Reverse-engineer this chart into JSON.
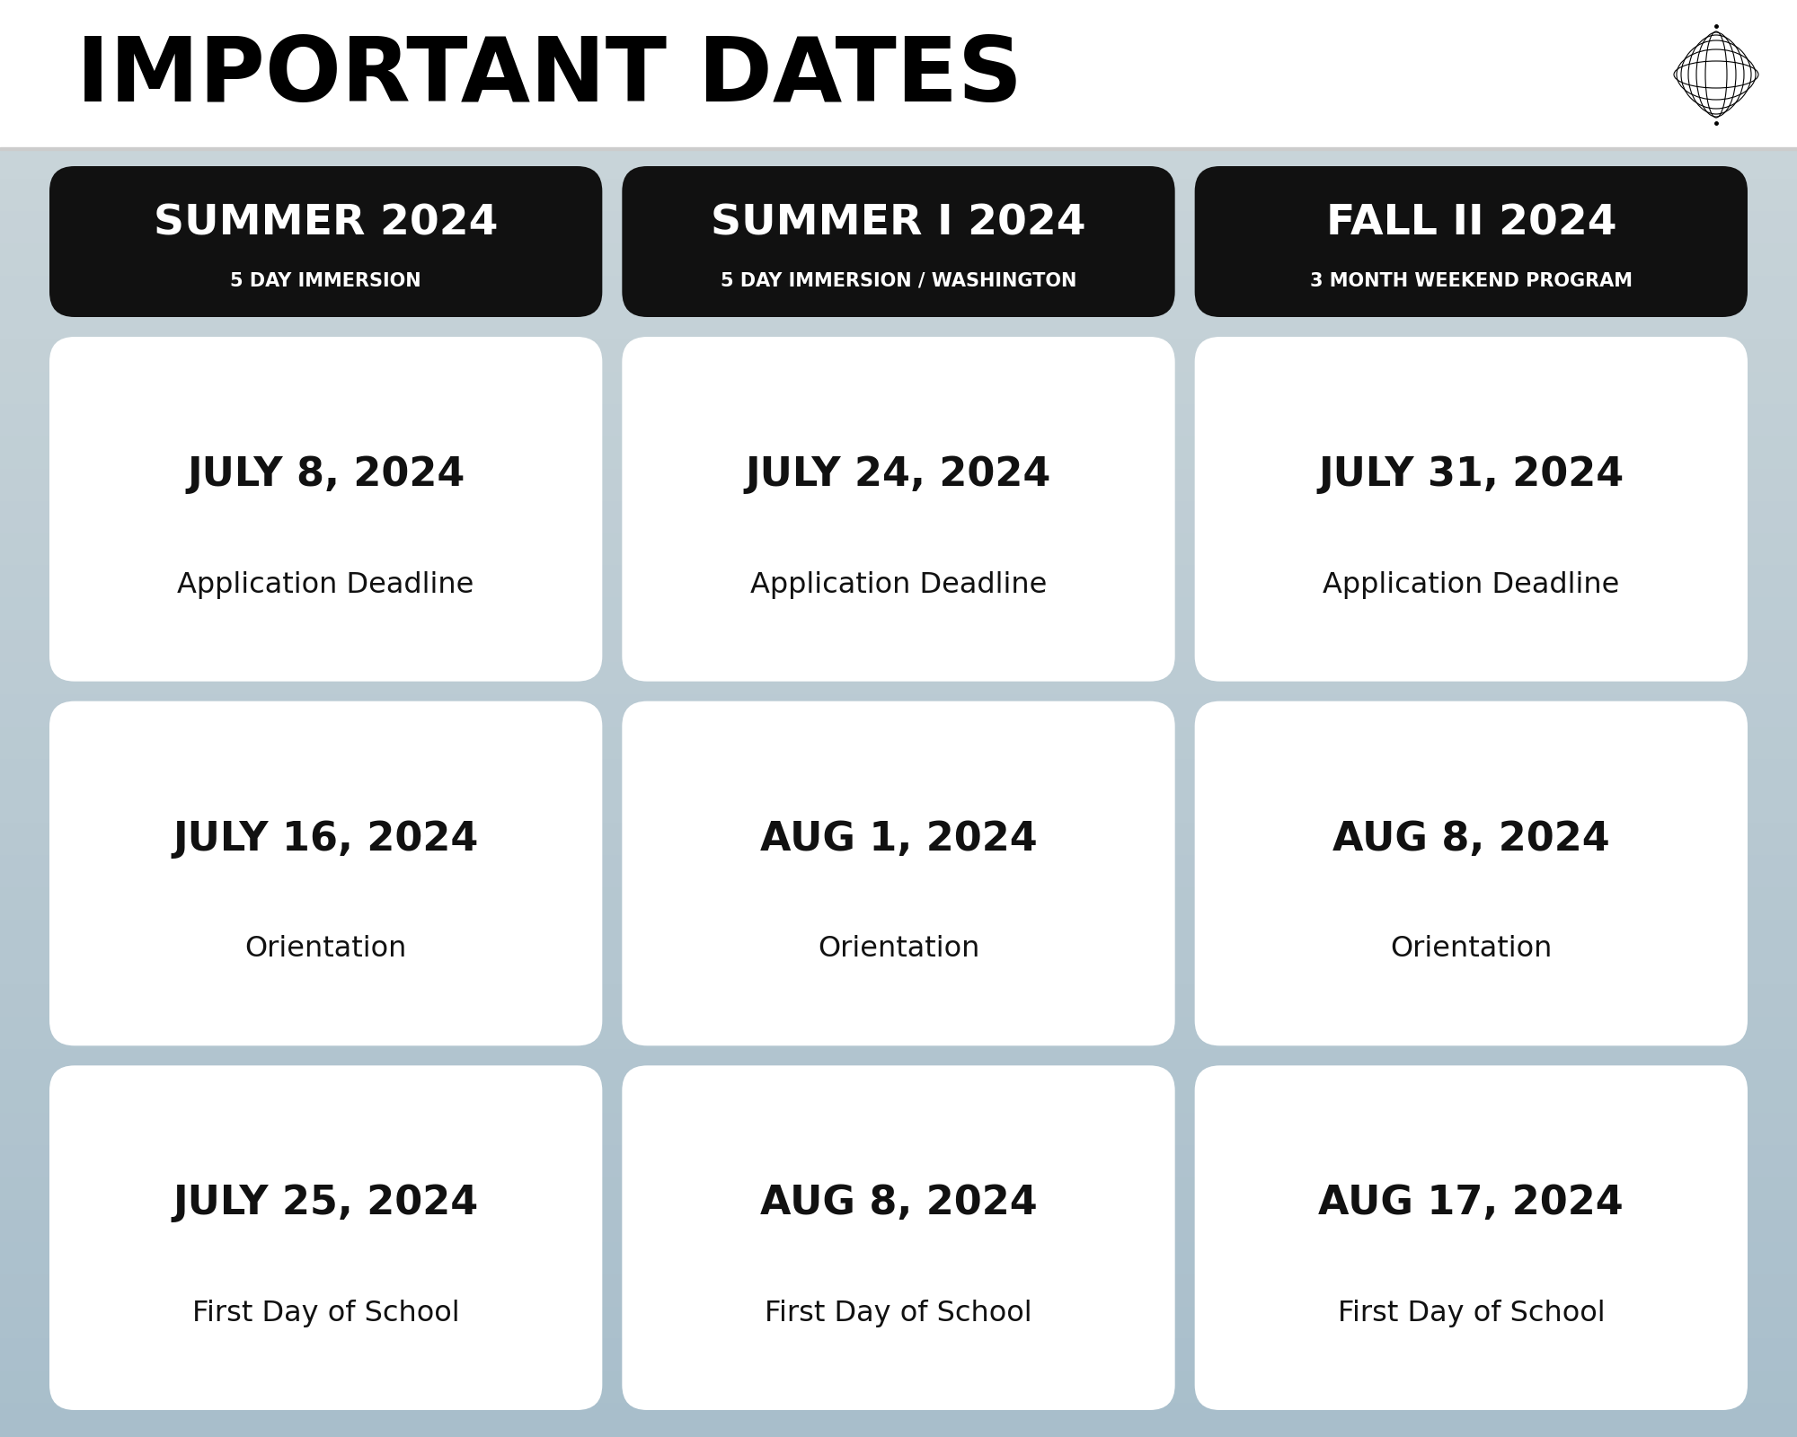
{
  "title": "IMPORTANT DATES",
  "title_fontsize": 72,
  "bg_top_color": "#ffffff",
  "header_bg": "#111111",
  "header_text_color": "#ffffff",
  "cell_bg": "#ffffff",
  "cell_text_color": "#111111",
  "columns": [
    {
      "title": "SUMMER 2024",
      "subtitle": "5 DAY IMMERSION"
    },
    {
      "title": "SUMMER I 2024",
      "subtitle": "5 DAY IMMERSION / WASHINGTON"
    },
    {
      "title": "FALL II 2024",
      "subtitle": "3 MONTH WEEKEND PROGRAM"
    }
  ],
  "rows": [
    {
      "label": "Application Deadline",
      "dates": [
        "JULY 8, 2024",
        "JULY 24, 2024",
        "JULY 31, 2024"
      ]
    },
    {
      "label": "Orientation",
      "dates": [
        "JULY 16, 2024",
        "AUG 1, 2024",
        "AUG 8, 2024"
      ]
    },
    {
      "label": "First Day of School",
      "dates": [
        "JULY 25, 2024",
        "AUG 8, 2024",
        "AUG 17, 2024"
      ]
    }
  ]
}
